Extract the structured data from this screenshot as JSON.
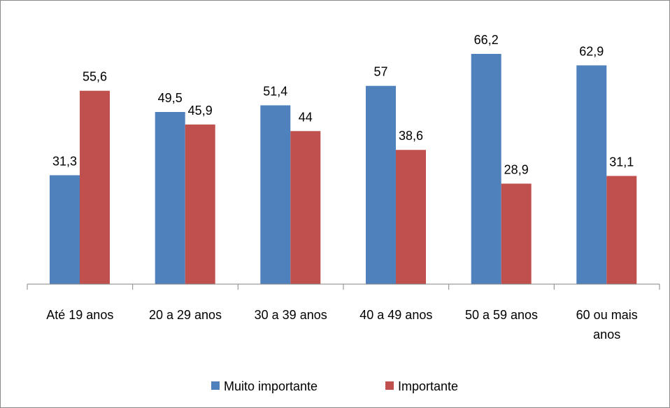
{
  "chart_data": {
    "type": "bar",
    "categories": [
      "Até 19 anos",
      "20 a 29 anos",
      "30 a 39 anos",
      "40 a 49 anos",
      "50 a 59 anos",
      "60 ou mais anos"
    ],
    "category_lines": [
      [
        "Até 19 anos"
      ],
      [
        "20 a 29 anos"
      ],
      [
        "30 a 39 anos"
      ],
      [
        "40 a 49 anos"
      ],
      [
        "50 a 59 anos"
      ],
      [
        "60 ou mais",
        "anos"
      ]
    ],
    "series": [
      {
        "name": "Muito importante",
        "color": "#4f81bd",
        "values": [
          31.3,
          49.5,
          51.4,
          57,
          66.2,
          62.9
        ],
        "labels": [
          "31,3",
          "49,5",
          "51,4",
          "57",
          "66,2",
          "62,9"
        ]
      },
      {
        "name": "Importante",
        "color": "#c0504d",
        "values": [
          55.6,
          45.9,
          44,
          38.6,
          28.9,
          31.1
        ],
        "labels": [
          "55,6",
          "45,9",
          "44",
          "38,6",
          "28,9",
          "31,1"
        ]
      }
    ],
    "ylim": [
      0,
      70
    ],
    "grid": false,
    "legend_position": "bottom",
    "title": "",
    "xlabel": "",
    "ylabel": ""
  }
}
